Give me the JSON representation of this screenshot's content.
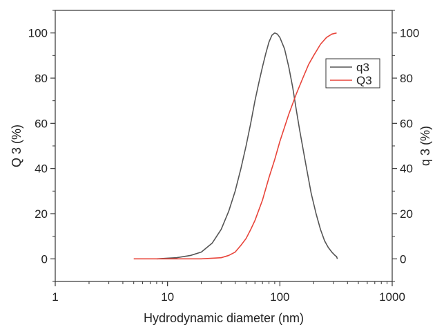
{
  "chart_data": {
    "type": "line",
    "xlabel": "Hydrodynamic diameter (nm)",
    "ylabel_left": "Q 3 (%)",
    "ylabel_right": "q 3 (%)",
    "xscale": "log",
    "xlim": [
      1,
      1000
    ],
    "ylim": [
      -10,
      110
    ],
    "x_ticks": [
      1,
      10,
      100,
      1000
    ],
    "x_tick_labels": [
      "1",
      "10",
      "100",
      "1000"
    ],
    "y_ticks": [
      0,
      20,
      40,
      60,
      80,
      100
    ],
    "y_tick_labels": [
      "0",
      "20",
      "40",
      "60",
      "80",
      "100"
    ],
    "legend_position": "top-right",
    "grid": false,
    "series": [
      {
        "name": "q3",
        "color": "#555555",
        "x": [
          8,
          12,
          16,
          20,
          25,
          30,
          35,
          40,
          45,
          50,
          55,
          60,
          65,
          70,
          75,
          80,
          85,
          90,
          95,
          100,
          110,
          120,
          130,
          140,
          150,
          170,
          190,
          210,
          230,
          250,
          270,
          290,
          310,
          320,
          325
        ],
        "y": [
          0,
          0.5,
          1.5,
          3,
          7,
          13,
          21,
          30,
          40,
          50,
          60,
          70,
          78,
          85,
          91,
          96,
          99,
          100,
          99.5,
          98,
          93,
          85,
          76,
          66,
          57,
          42,
          29,
          20,
          13,
          8,
          5,
          3,
          1.5,
          1,
          0
        ]
      },
      {
        "name": "Q3",
        "color": "#e8443a",
        "x": [
          5,
          10,
          20,
          30,
          35,
          40,
          45,
          50,
          55,
          60,
          70,
          80,
          90,
          100,
          120,
          140,
          160,
          180,
          200,
          230,
          260,
          290,
          320
        ],
        "y": [
          0,
          0,
          0,
          0.5,
          1.5,
          3,
          6,
          9,
          13,
          17,
          26,
          36,
          44,
          52,
          64,
          73,
          80,
          86,
          90,
          95,
          98,
          99.5,
          100
        ]
      }
    ]
  }
}
